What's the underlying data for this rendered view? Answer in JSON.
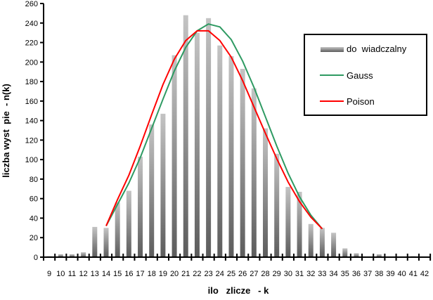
{
  "chart_data": {
    "type": "bar",
    "xlabel": "ilo   zlicze   - k",
    "ylabel": "liczba wyst  pie  - n(k)",
    "ylim": [
      0,
      260
    ],
    "yticks": [
      0,
      20,
      40,
      60,
      80,
      100,
      120,
      140,
      160,
      180,
      200,
      220,
      240,
      260
    ],
    "categories": [
      9,
      10,
      11,
      12,
      13,
      14,
      15,
      16,
      17,
      18,
      19,
      20,
      21,
      22,
      23,
      24,
      25,
      26,
      27,
      28,
      29,
      30,
      31,
      32,
      33,
      34,
      35,
      36,
      37,
      38,
      39,
      40,
      41,
      42
    ],
    "grid": false,
    "legend_position": "right",
    "series": [
      {
        "name": "do  wiadczalny",
        "type": "bar",
        "color": "#909090",
        "values": [
          1,
          3,
          3,
          5,
          31,
          30,
          56,
          68,
          103,
          136,
          147,
          207,
          248,
          230,
          245,
          217,
          206,
          193,
          173,
          132,
          106,
          72,
          67,
          34,
          30,
          25,
          9,
          4,
          0,
          3,
          0,
          0,
          1,
          0
        ]
      },
      {
        "name": "Gauss",
        "type": "line",
        "color": "#2e9a62",
        "x": [
          14,
          15,
          16,
          17,
          18,
          19,
          20,
          21,
          22,
          23,
          24,
          25,
          26,
          27,
          28,
          29,
          30,
          31,
          32,
          33
        ],
        "values": [
          32,
          54,
          76,
          102,
          132,
          162,
          191,
          215,
          232,
          239,
          236,
          223,
          201,
          174,
          144,
          114,
          86,
          62,
          43,
          29
        ]
      },
      {
        "name": "Poison",
        "type": "line",
        "color": "#ff0000",
        "x": [
          14,
          15,
          16,
          17,
          18,
          19,
          20,
          21,
          22,
          23,
          24,
          25,
          26,
          27,
          28,
          29,
          30,
          31,
          32,
          33
        ],
        "values": [
          32,
          59,
          84,
          114,
          146,
          177,
          203,
          222,
          232,
          232,
          222,
          205,
          181,
          154,
          127,
          101,
          77,
          57,
          41,
          29
        ]
      }
    ]
  }
}
